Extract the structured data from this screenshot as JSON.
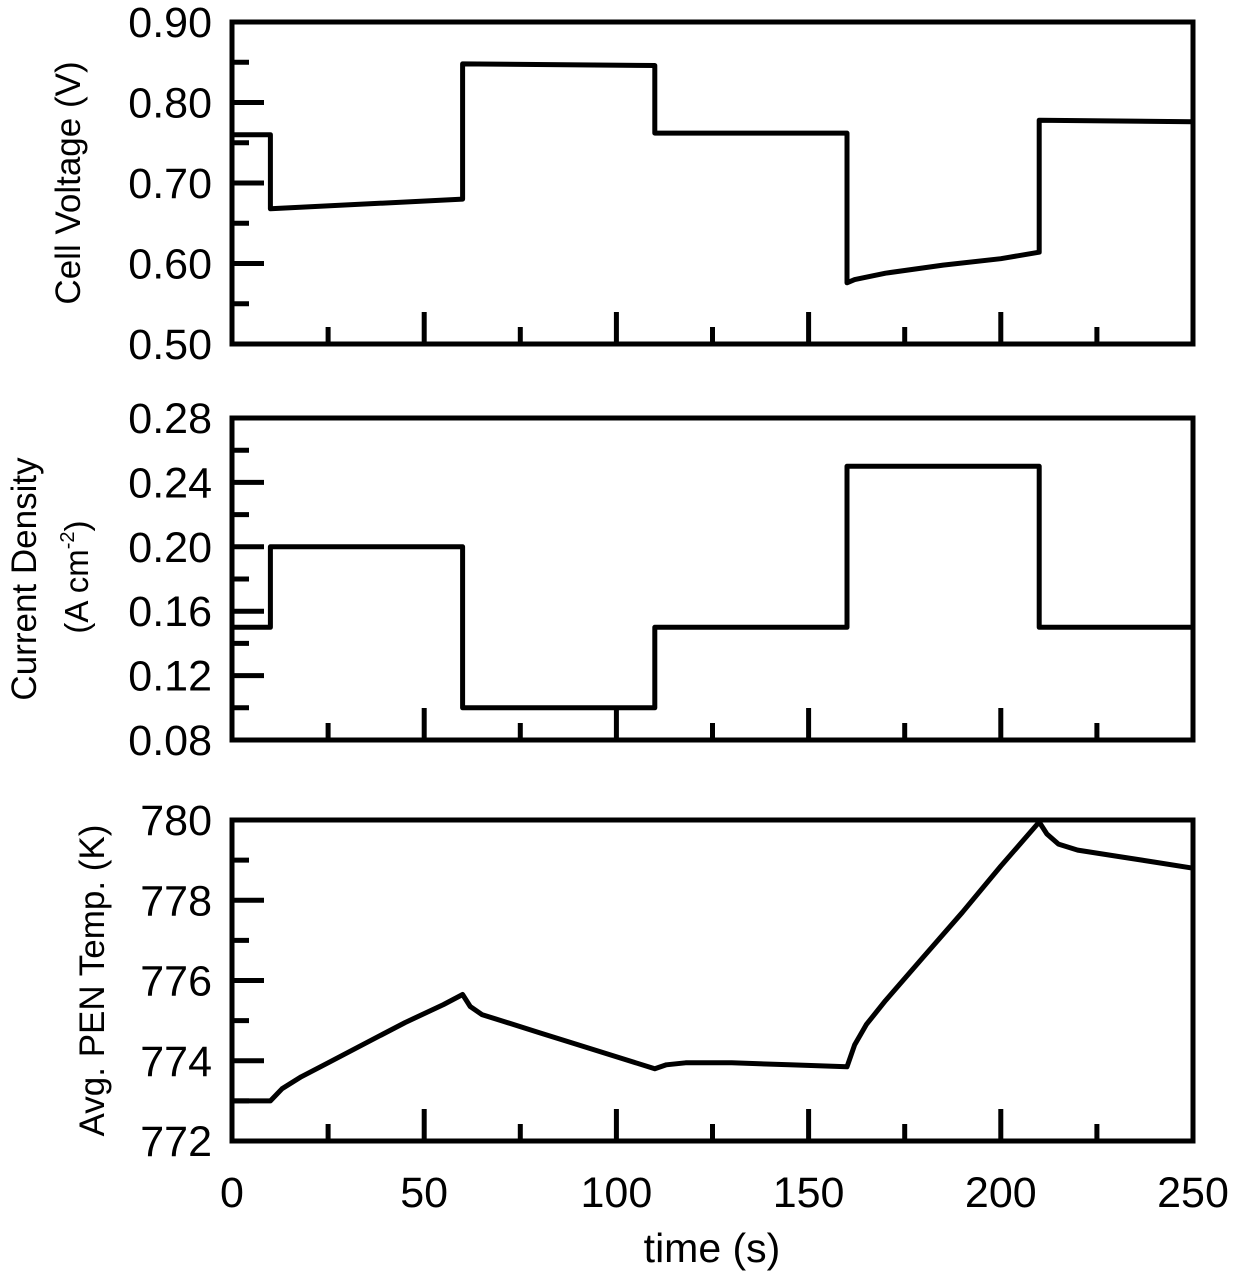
{
  "figure": {
    "xlabel": "time (s)",
    "x_ticks": [
      "0",
      "50",
      "100",
      "150",
      "200",
      "250"
    ]
  },
  "chart_data": [
    {
      "type": "line",
      "title": "",
      "xlabel": "time (s)",
      "ylabel": "Cell Voltage (V)",
      "xlim": [
        0,
        250
      ],
      "ylim": [
        0.5,
        0.9
      ],
      "grid": false,
      "y_ticks": [
        "0.90",
        "0.80",
        "0.70",
        "0.60",
        "0.50"
      ],
      "x_ticks": [
        "0",
        "50",
        "100",
        "150",
        "200",
        "250"
      ],
      "series": [
        {
          "name": "Cell Voltage",
          "x": [
            0,
            10,
            10,
            60,
            60,
            110,
            110,
            160,
            160,
            162,
            170,
            185,
            200,
            210,
            210,
            250
          ],
          "y": [
            0.76,
            0.76,
            0.668,
            0.68,
            0.848,
            0.846,
            0.762,
            0.762,
            0.576,
            0.58,
            0.588,
            0.598,
            0.606,
            0.614,
            0.778,
            0.776
          ]
        }
      ]
    },
    {
      "type": "line",
      "title": "",
      "xlabel": "time (s)",
      "ylabel": "Current Density (A cm-2)",
      "ylabel_line1": "Current Density",
      "ylabel_line2_prefix": "(A cm",
      "ylabel_line2_sup": "-2",
      "ylabel_line2_suffix": ")",
      "xlim": [
        0,
        250
      ],
      "ylim": [
        0.08,
        0.28
      ],
      "grid": false,
      "y_ticks": [
        "0.28",
        "0.24",
        "0.20",
        "0.16",
        "0.12",
        "0.08"
      ],
      "x_ticks": [
        "0",
        "50",
        "100",
        "150",
        "200",
        "250"
      ],
      "series": [
        {
          "name": "Current Density",
          "x": [
            0,
            10,
            10,
            60,
            60,
            110,
            110,
            160,
            160,
            210,
            210,
            250
          ],
          "y": [
            0.15,
            0.15,
            0.2,
            0.2,
            0.1,
            0.1,
            0.15,
            0.15,
            0.25,
            0.25,
            0.15,
            0.15
          ]
        }
      ]
    },
    {
      "type": "line",
      "title": "",
      "xlabel": "time (s)",
      "ylabel": "Avg. PEN Temp. (K)",
      "xlim": [
        0,
        250
      ],
      "ylim": [
        772,
        780
      ],
      "grid": false,
      "y_ticks": [
        "780",
        "778",
        "776",
        "774",
        "772"
      ],
      "x_ticks": [
        "0",
        "50",
        "100",
        "150",
        "200",
        "250"
      ],
      "series": [
        {
          "name": "Avg. PEN Temperature",
          "x": [
            0,
            10,
            13,
            18,
            25,
            35,
            45,
            55,
            60,
            62,
            65,
            70,
            80,
            90,
            100,
            110,
            113,
            118,
            130,
            145,
            160,
            162,
            165,
            170,
            180,
            190,
            200,
            210,
            212,
            215,
            220,
            230,
            240,
            250
          ],
          "y": [
            773.0,
            773.0,
            773.3,
            773.6,
            773.95,
            774.45,
            774.95,
            775.4,
            775.65,
            775.35,
            775.15,
            775.0,
            774.7,
            774.4,
            774.1,
            773.8,
            773.9,
            773.95,
            773.95,
            773.9,
            773.85,
            774.4,
            774.9,
            775.5,
            776.6,
            777.7,
            778.85,
            779.95,
            779.65,
            779.4,
            779.25,
            779.1,
            778.95,
            778.8
          ]
        }
      ]
    }
  ]
}
